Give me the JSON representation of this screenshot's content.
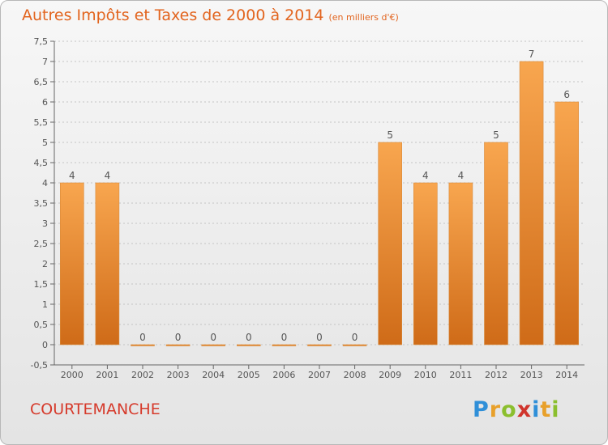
{
  "header": {
    "title": "Autres Impôts et Taxes de 2000 à 2014",
    "subtitle": "(en milliers d'€)"
  },
  "footer": {
    "location": "COURTEMANCHE",
    "logo_text": "Proxiti"
  },
  "colors": {
    "title": "#e2641e",
    "bar_top": "#f8a64f",
    "bar_bottom": "#cf6b18",
    "footer": "#d63a2b"
  },
  "chart_data": {
    "type": "bar",
    "title": "Autres Impôts et Taxes de 2000 à 2014",
    "subtitle": "(en milliers d'€)",
    "categories": [
      "2000",
      "2001",
      "2002",
      "2003",
      "2004",
      "2005",
      "2006",
      "2007",
      "2008",
      "2009",
      "2010",
      "2011",
      "2012",
      "2013",
      "2014"
    ],
    "values": [
      4,
      4,
      0,
      0,
      0,
      0,
      0,
      0,
      0,
      5,
      4,
      4,
      5,
      7,
      6
    ],
    "value_labels": [
      "4",
      "4",
      "0",
      "0",
      "0",
      "0",
      "0",
      "0",
      "0",
      "5",
      "4",
      "4",
      "5",
      "7",
      "6"
    ],
    "ylim": [
      -0.5,
      7.5
    ],
    "yticks": [
      -0.5,
      0,
      0.5,
      1,
      1.5,
      2,
      2.5,
      3,
      3.5,
      4,
      4.5,
      5,
      5.5,
      6,
      6.5,
      7,
      7.5
    ],
    "ytick_labels": [
      "-0,5",
      "0",
      "0,5",
      "1",
      "1,5",
      "2",
      "2,5",
      "3",
      "3,5",
      "4",
      "4,5",
      "5",
      "5,5",
      "6",
      "6,5",
      "7",
      "7,5"
    ],
    "grid": "horizontal dashed",
    "legend": "none"
  }
}
